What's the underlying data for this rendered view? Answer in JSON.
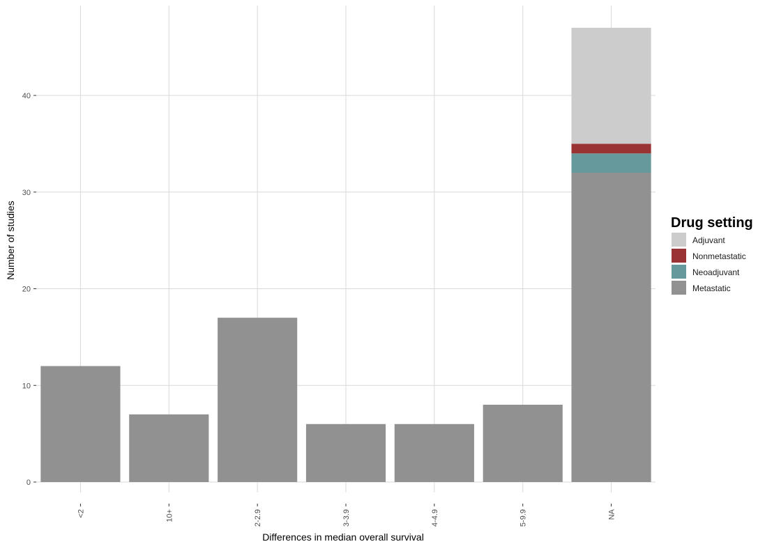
{
  "chart_data": {
    "type": "bar",
    "stacked": true,
    "title": "",
    "xlabel": "Differences in median overall survival",
    "ylabel": "Number of studies",
    "categories": [
      "<2",
      "10+",
      "2-2.9",
      "3-3.9",
      "4-4.9",
      "5-9.9",
      "NA"
    ],
    "ylim": [
      0,
      49
    ],
    "yticks": [
      0,
      10,
      20,
      30,
      40
    ],
    "grid": true,
    "legend": {
      "title": "Drug setting",
      "position": "right",
      "entries": [
        "Adjuvant",
        "Nonmetastatic",
        "Neoadjuvant",
        "Metastatic"
      ]
    },
    "series": [
      {
        "name": "Metastatic",
        "color": "#919191",
        "values": [
          12,
          7,
          17,
          6,
          6,
          8,
          32
        ]
      },
      {
        "name": "Neoadjuvant",
        "color": "#66999b",
        "values": [
          0,
          0,
          0,
          0,
          0,
          0,
          2
        ]
      },
      {
        "name": "Nonmetastatic",
        "color": "#9a3334",
        "values": [
          0,
          0,
          0,
          0,
          0,
          0,
          1
        ]
      },
      {
        "name": "Adjuvant",
        "color": "#cccccc",
        "values": [
          0,
          0,
          0,
          0,
          0,
          0,
          12
        ]
      }
    ]
  }
}
